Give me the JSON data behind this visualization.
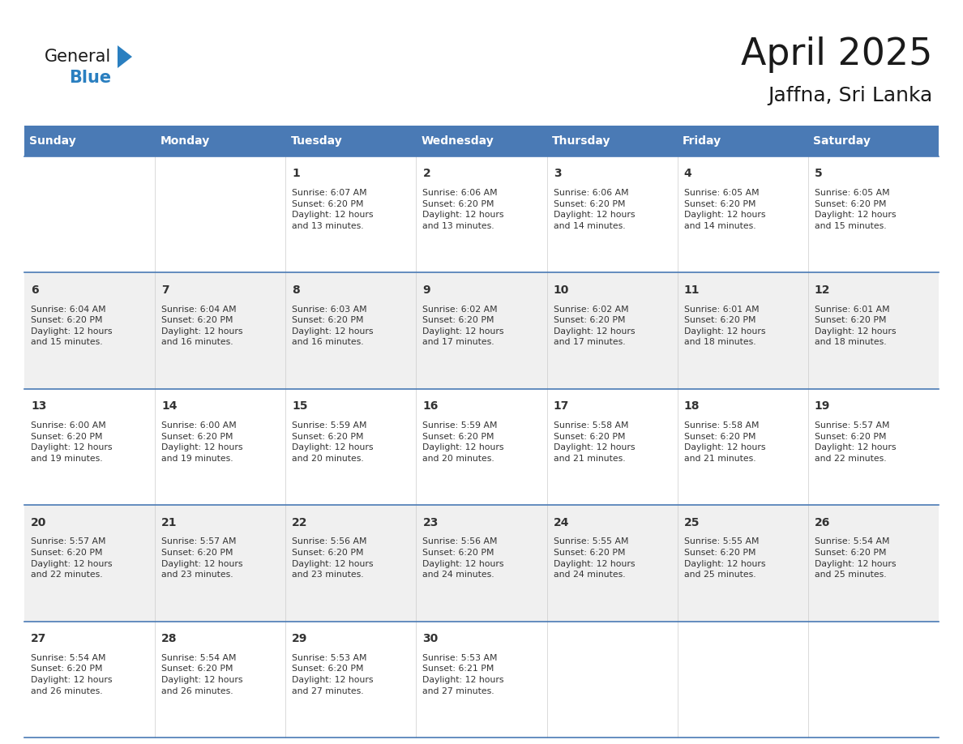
{
  "title": "April 2025",
  "subtitle": "Jaffna, Sri Lanka",
  "header_bg": "#4a7ab5",
  "header_text_color": "#ffffff",
  "cell_bg_odd": "#f0f0f0",
  "cell_bg_even": "#ffffff",
  "text_color": "#333333",
  "border_color": "#4a7ab5",
  "day_names": [
    "Sunday",
    "Monday",
    "Tuesday",
    "Wednesday",
    "Thursday",
    "Friday",
    "Saturday"
  ],
  "weeks": [
    [
      {
        "day": "",
        "info": ""
      },
      {
        "day": "",
        "info": ""
      },
      {
        "day": "1",
        "info": "Sunrise: 6:07 AM\nSunset: 6:20 PM\nDaylight: 12 hours\nand 13 minutes."
      },
      {
        "day": "2",
        "info": "Sunrise: 6:06 AM\nSunset: 6:20 PM\nDaylight: 12 hours\nand 13 minutes."
      },
      {
        "day": "3",
        "info": "Sunrise: 6:06 AM\nSunset: 6:20 PM\nDaylight: 12 hours\nand 14 minutes."
      },
      {
        "day": "4",
        "info": "Sunrise: 6:05 AM\nSunset: 6:20 PM\nDaylight: 12 hours\nand 14 minutes."
      },
      {
        "day": "5",
        "info": "Sunrise: 6:05 AM\nSunset: 6:20 PM\nDaylight: 12 hours\nand 15 minutes."
      }
    ],
    [
      {
        "day": "6",
        "info": "Sunrise: 6:04 AM\nSunset: 6:20 PM\nDaylight: 12 hours\nand 15 minutes."
      },
      {
        "day": "7",
        "info": "Sunrise: 6:04 AM\nSunset: 6:20 PM\nDaylight: 12 hours\nand 16 minutes."
      },
      {
        "day": "8",
        "info": "Sunrise: 6:03 AM\nSunset: 6:20 PM\nDaylight: 12 hours\nand 16 minutes."
      },
      {
        "day": "9",
        "info": "Sunrise: 6:02 AM\nSunset: 6:20 PM\nDaylight: 12 hours\nand 17 minutes."
      },
      {
        "day": "10",
        "info": "Sunrise: 6:02 AM\nSunset: 6:20 PM\nDaylight: 12 hours\nand 17 minutes."
      },
      {
        "day": "11",
        "info": "Sunrise: 6:01 AM\nSunset: 6:20 PM\nDaylight: 12 hours\nand 18 minutes."
      },
      {
        "day": "12",
        "info": "Sunrise: 6:01 AM\nSunset: 6:20 PM\nDaylight: 12 hours\nand 18 minutes."
      }
    ],
    [
      {
        "day": "13",
        "info": "Sunrise: 6:00 AM\nSunset: 6:20 PM\nDaylight: 12 hours\nand 19 minutes."
      },
      {
        "day": "14",
        "info": "Sunrise: 6:00 AM\nSunset: 6:20 PM\nDaylight: 12 hours\nand 19 minutes."
      },
      {
        "day": "15",
        "info": "Sunrise: 5:59 AM\nSunset: 6:20 PM\nDaylight: 12 hours\nand 20 minutes."
      },
      {
        "day": "16",
        "info": "Sunrise: 5:59 AM\nSunset: 6:20 PM\nDaylight: 12 hours\nand 20 minutes."
      },
      {
        "day": "17",
        "info": "Sunrise: 5:58 AM\nSunset: 6:20 PM\nDaylight: 12 hours\nand 21 minutes."
      },
      {
        "day": "18",
        "info": "Sunrise: 5:58 AM\nSunset: 6:20 PM\nDaylight: 12 hours\nand 21 minutes."
      },
      {
        "day": "19",
        "info": "Sunrise: 5:57 AM\nSunset: 6:20 PM\nDaylight: 12 hours\nand 22 minutes."
      }
    ],
    [
      {
        "day": "20",
        "info": "Sunrise: 5:57 AM\nSunset: 6:20 PM\nDaylight: 12 hours\nand 22 minutes."
      },
      {
        "day": "21",
        "info": "Sunrise: 5:57 AM\nSunset: 6:20 PM\nDaylight: 12 hours\nand 23 minutes."
      },
      {
        "day": "22",
        "info": "Sunrise: 5:56 AM\nSunset: 6:20 PM\nDaylight: 12 hours\nand 23 minutes."
      },
      {
        "day": "23",
        "info": "Sunrise: 5:56 AM\nSunset: 6:20 PM\nDaylight: 12 hours\nand 24 minutes."
      },
      {
        "day": "24",
        "info": "Sunrise: 5:55 AM\nSunset: 6:20 PM\nDaylight: 12 hours\nand 24 minutes."
      },
      {
        "day": "25",
        "info": "Sunrise: 5:55 AM\nSunset: 6:20 PM\nDaylight: 12 hours\nand 25 minutes."
      },
      {
        "day": "26",
        "info": "Sunrise: 5:54 AM\nSunset: 6:20 PM\nDaylight: 12 hours\nand 25 minutes."
      }
    ],
    [
      {
        "day": "27",
        "info": "Sunrise: 5:54 AM\nSunset: 6:20 PM\nDaylight: 12 hours\nand 26 minutes."
      },
      {
        "day": "28",
        "info": "Sunrise: 5:54 AM\nSunset: 6:20 PM\nDaylight: 12 hours\nand 26 minutes."
      },
      {
        "day": "29",
        "info": "Sunrise: 5:53 AM\nSunset: 6:20 PM\nDaylight: 12 hours\nand 27 minutes."
      },
      {
        "day": "30",
        "info": "Sunrise: 5:53 AM\nSunset: 6:21 PM\nDaylight: 12 hours\nand 27 minutes."
      },
      {
        "day": "",
        "info": ""
      },
      {
        "day": "",
        "info": ""
      },
      {
        "day": "",
        "info": ""
      }
    ]
  ],
  "logo_general_color": "#1a1a1a",
  "logo_blue_color": "#2a7fc0",
  "logo_triangle_color": "#2a7fc0",
  "title_color": "#1a1a1a",
  "subtitle_color": "#1a1a1a"
}
